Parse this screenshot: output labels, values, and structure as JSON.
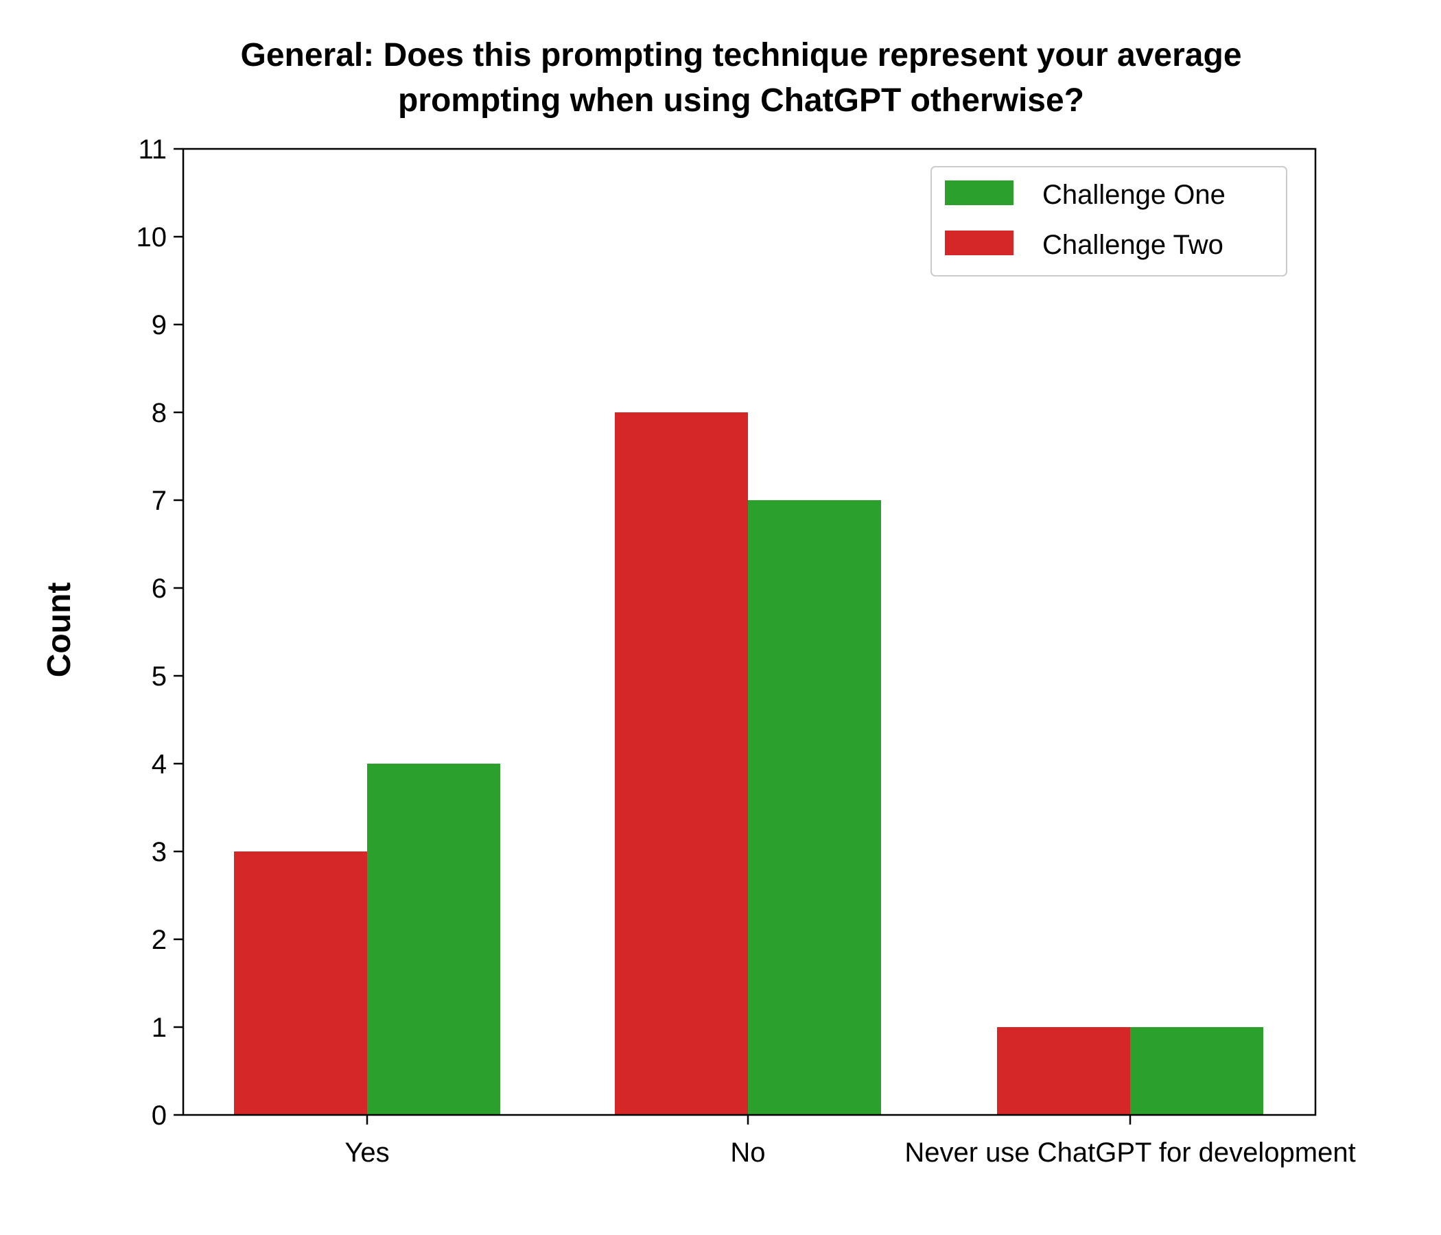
{
  "chart_data": {
    "type": "bar",
    "title": "General: Does this prompting technique represent your average prompting when using ChatGPT otherwise?",
    "title_lines": [
      "General: Does this prompting technique represent your average",
      "prompting when using ChatGPT otherwise?"
    ],
    "xlabel": "",
    "ylabel": "Count",
    "ylim": [
      0,
      11
    ],
    "yticks": [
      "0",
      "1",
      "2",
      "3",
      "4",
      "5",
      "6",
      "7",
      "8",
      "9",
      "10",
      "11"
    ],
    "categories": [
      "Yes",
      "No",
      "Never use ChatGPT for development"
    ],
    "series": [
      {
        "name": "Challenge Two",
        "color": "#d62728",
        "values": [
          3,
          8,
          1
        ]
      },
      {
        "name": "Challenge One",
        "color": "#2ca02c",
        "values": [
          4,
          7,
          1
        ]
      }
    ],
    "legend": {
      "position": "top-right",
      "order": [
        "Challenge One",
        "Challenge Two"
      ]
    },
    "grid": false
  }
}
